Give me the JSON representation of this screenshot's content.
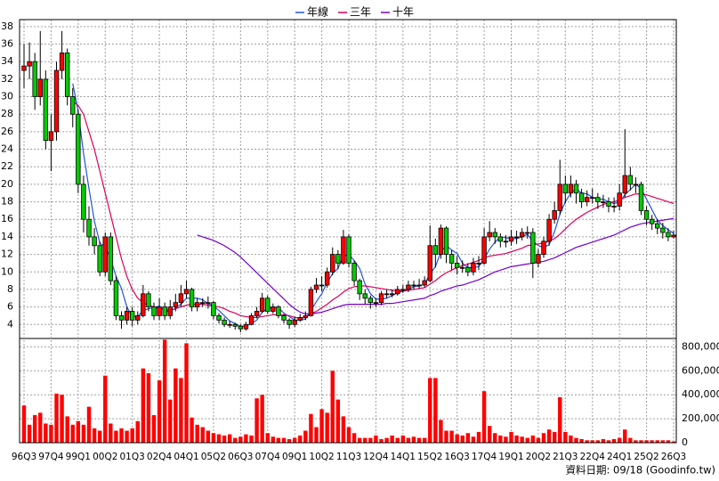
{
  "chart_data": {
    "type": "candlestick",
    "legend": "top",
    "grid": true,
    "up_color": "#ff0000",
    "down_color": "#00cc00",
    "footer": "資料日期: 09/18 (Goodinfo.tw)",
    "categories": [
      "96Q3",
      null,
      null,
      null,
      null,
      "97Q4",
      null,
      null,
      null,
      null,
      "99Q1",
      null,
      null,
      null,
      null,
      "00Q2",
      null,
      null,
      null,
      null,
      "01Q3",
      null,
      null,
      null,
      null,
      "02Q4",
      null,
      null,
      null,
      null,
      "04Q1",
      null,
      null,
      null,
      null,
      "05Q2",
      null,
      null,
      null,
      null,
      "06Q3",
      null,
      null,
      null,
      null,
      "07Q4",
      null,
      null,
      null,
      null,
      "09Q1",
      null,
      null,
      null,
      null,
      "10Q2",
      null,
      null,
      null,
      null,
      "11Q3",
      null,
      null,
      null,
      null,
      "12Q4",
      null,
      null,
      null,
      null,
      "14Q1",
      null,
      null,
      null,
      null,
      "15Q2",
      null,
      null,
      null,
      null,
      "16Q3",
      null,
      null,
      null,
      null,
      "17Q4",
      null,
      null,
      null,
      null,
      "19Q1",
      null,
      null,
      null,
      null,
      "20Q2",
      null,
      null,
      null,
      null,
      "21Q3",
      null,
      null,
      null,
      null,
      "22Q4",
      null,
      null,
      null,
      null,
      "24Q1",
      null,
      null,
      null,
      null,
      "25Q2",
      null,
      null,
      null,
      null,
      "26Q3"
    ],
    "open": [
      33,
      33.5,
      34,
      30,
      32,
      25,
      26,
      33,
      35,
      30,
      28,
      20,
      16,
      14,
      13,
      10,
      14,
      9,
      5,
      4.5,
      5.5,
      4.5,
      5,
      7.5,
      6,
      5,
      6,
      5,
      6,
      6.5,
      7.5,
      8,
      6,
      6.5,
      6.5,
      6.5,
      5,
      4.5,
      4,
      4,
      3.8,
      3.5,
      4,
      5,
      5.5,
      7,
      5.5,
      6,
      5,
      4.5,
      4,
      4.5,
      4.8,
      5,
      8,
      8.5,
      8.5,
      10,
      12,
      11,
      14,
      11,
      9,
      7.5,
      7,
      6.5,
      6.5,
      7.5,
      7.5,
      7.5,
      8,
      8,
      8.5,
      8.5,
      8.5,
      9,
      13,
      12,
      15,
      12,
      11,
      10.5,
      10.5,
      10,
      11,
      11,
      14,
      14.5,
      14,
      13.5,
      13.5,
      14,
      14,
      14.5,
      14.5,
      11,
      12,
      13.5,
      16,
      17,
      20,
      19,
      20,
      19,
      18,
      18.5,
      18.5,
      18,
      18,
      17.5,
      17.5,
      19,
      21,
      20,
      20,
      17,
      16,
      15.5,
      15,
      14.5,
      14
    ],
    "high": [
      36,
      36.2,
      35,
      37.5,
      33,
      28,
      34,
      37.5,
      35.5,
      31,
      28.5,
      21,
      17.5,
      15,
      13.5,
      14.5,
      14.5,
      9.5,
      5.5,
      6,
      6,
      5.5,
      8.5,
      7.8,
      6.5,
      7,
      6.5,
      6.8,
      7.5,
      8.5,
      9,
      8.2,
      7,
      7,
      7.2,
      6.7,
      5.3,
      4.8,
      4.4,
      4.2,
      4,
      4.3,
      5.3,
      6,
      7.6,
      7.3,
      6.4,
      6.2,
      5.2,
      4.7,
      4.9,
      5.2,
      5.5,
      8.3,
      9.3,
      9.5,
      10.5,
      12.8,
      12.5,
      14.8,
      14.3,
      11.3,
      9.2,
      8,
      7.3,
      7,
      7.8,
      8,
      8,
      8.4,
      8.5,
      9,
      9,
      9.2,
      9.5,
      15.3,
      13.8,
      15.4,
      15.2,
      12.5,
      11.8,
      11.3,
      11,
      11.6,
      11.8,
      15,
      15.8,
      15,
      14.4,
      14.2,
      14.8,
      14.7,
      15,
      15.2,
      15,
      12.6,
      14,
      16.6,
      18,
      22.8,
      21,
      21,
      20.5,
      19.5,
      19.3,
      19.5,
      19,
      18.8,
      18.5,
      18.5,
      20,
      26.3,
      22,
      20.8,
      20.3,
      17.5,
      16.5,
      16,
      15.6,
      15,
      14.7
    ],
    "low": [
      31,
      32,
      28.5,
      29,
      24,
      21.5,
      25,
      32,
      29,
      26.5,
      19,
      14.5,
      13,
      12,
      9.5,
      9.5,
      8.5,
      4.5,
      3.5,
      4,
      3.8,
      4,
      4.8,
      5.5,
      4.5,
      4.5,
      4.5,
      4.6,
      5.5,
      6,
      7,
      5.5,
      5.5,
      6,
      5.8,
      4.6,
      4.1,
      3.7,
      3.6,
      3.4,
      3.1,
      3.3,
      3.9,
      4.7,
      5.3,
      5.2,
      5.2,
      4.7,
      4.1,
      3.5,
      3.7,
      4.3,
      4.5,
      4.9,
      7.6,
      7.8,
      8.2,
      9.6,
      10.3,
      10.8,
      10.5,
      8.4,
      6.8,
      6.3,
      5.8,
      6,
      6.2,
      7,
      7.1,
      7.3,
      7.6,
      7.7,
      8,
      8.1,
      8.2,
      8.8,
      10.5,
      11.5,
      11,
      10.2,
      9.7,
      9.9,
      9.5,
      9.6,
      10.2,
      10.8,
      13.5,
      13.2,
      12.8,
      12.8,
      13,
      13.2,
      13.6,
      13.8,
      9.3,
      10.5,
      11.6,
      13,
      15.5,
      16.5,
      17.8,
      18.5,
      17.8,
      17.3,
      17.5,
      17.8,
      17.2,
      17.3,
      16.8,
      16.8,
      17,
      18.5,
      19.3,
      19,
      16.5,
      15.3,
      14.8,
      14.3,
      13.8,
      13.5,
      13.8
    ],
    "close": [
      33.5,
      34,
      30,
      32,
      25,
      26,
      33,
      35,
      30,
      28,
      20,
      16,
      14,
      13,
      10,
      14,
      9,
      5,
      4.5,
      5.5,
      4.5,
      5,
      7.5,
      6,
      5,
      6,
      5,
      6,
      6.5,
      7.5,
      8,
      6,
      6.5,
      6.5,
      6.5,
      5,
      4.5,
      4,
      4,
      3.8,
      3.5,
      4,
      5,
      5.5,
      7,
      5.5,
      6,
      5,
      4.5,
      4,
      4.5,
      4.8,
      5,
      8,
      8.5,
      8.5,
      10,
      12,
      11,
      14,
      11,
      9,
      7.5,
      7,
      6.5,
      6.5,
      7.5,
      7.5,
      7.5,
      8,
      8,
      8.5,
      8.5,
      8.5,
      9,
      13,
      12,
      15,
      12,
      11,
      10.5,
      10.5,
      10,
      11,
      11,
      14,
      14.5,
      14,
      13.5,
      13.5,
      14,
      14,
      14.5,
      14.5,
      11,
      12,
      13.5,
      16,
      17,
      20,
      19,
      20,
      19,
      18,
      18.5,
      18.5,
      18,
      18,
      17.5,
      17.5,
      19,
      21,
      20,
      20,
      17,
      16,
      15.5,
      15,
      14.5,
      14,
      14.2
    ],
    "volume": {
      "color": "#ff0000",
      "axis": "y2",
      "values": [
        310000,
        150000,
        230000,
        250000,
        160000,
        150000,
        410000,
        400000,
        220000,
        150000,
        180000,
        150000,
        300000,
        120000,
        100000,
        560000,
        160000,
        100000,
        120000,
        100000,
        120000,
        180000,
        620000,
        580000,
        230000,
        520000,
        860000,
        360000,
        620000,
        540000,
        830000,
        210000,
        150000,
        130000,
        100000,
        80000,
        70000,
        60000,
        70000,
        40000,
        50000,
        70000,
        60000,
        370000,
        400000,
        80000,
        50000,
        40000,
        40000,
        30000,
        40000,
        60000,
        100000,
        240000,
        130000,
        280000,
        250000,
        600000,
        360000,
        220000,
        130000,
        80000,
        40000,
        40000,
        40000,
        60000,
        30000,
        40000,
        60000,
        40000,
        60000,
        40000,
        50000,
        40000,
        40000,
        540000,
        540000,
        190000,
        100000,
        100000,
        70000,
        60000,
        80000,
        50000,
        90000,
        430000,
        140000,
        80000,
        60000,
        50000,
        90000,
        60000,
        50000,
        40000,
        60000,
        40000,
        80000,
        110000,
        90000,
        380000,
        90000,
        60000,
        40000,
        30000,
        20000,
        20000,
        20000,
        30000,
        20000,
        30000,
        40000,
        110000,
        40000,
        20000,
        20000,
        20000,
        20000,
        20000,
        20000,
        20000,
        10000
      ]
    },
    "series": [
      {
        "name": "年線",
        "color": "#2255dd",
        "values": [
          null,
          null,
          null,
          null,
          null,
          null,
          null,
          null,
          null,
          31.5,
          28.3,
          23.5,
          19.5,
          15.8,
          13.3,
          12.8,
          11.5,
          9.5,
          8.1,
          6,
          4.9,
          4.9,
          5.6,
          5.8,
          5.9,
          6.1,
          5.5,
          5.5,
          5.9,
          6.3,
          7,
          7,
          7,
          6.8,
          6.4,
          6.1,
          5.6,
          5,
          4.4,
          4.1,
          3.8,
          3.8,
          4.1,
          4.5,
          5.4,
          5.8,
          6,
          5.9,
          5.3,
          4.9,
          4.5,
          4.5,
          4.6,
          5.6,
          6.6,
          7.5,
          8.8,
          9.8,
          10.4,
          11.8,
          12,
          11.3,
          10.4,
          8.6,
          7.5,
          6.9,
          6.9,
          7,
          7.3,
          7.6,
          7.8,
          8,
          8.3,
          8.4,
          8.6,
          9.8,
          10.6,
          12.3,
          13,
          12.5,
          12.1,
          11,
          10.5,
          10.5,
          10.6,
          11.5,
          12.6,
          13.4,
          14,
          13.9,
          13.8,
          13.8,
          14,
          14.3,
          13.5,
          13,
          12.8,
          13.1,
          14.6,
          16.6,
          18,
          19,
          19.5,
          19,
          18.9,
          18.5,
          18.3,
          18.3,
          18,
          17.8,
          18,
          18.8,
          19.4,
          20,
          19.5,
          18.3,
          17.1,
          15.9,
          15.3,
          14.8,
          14.4
        ]
      },
      {
        "name": "三年",
        "color": "#dd0055",
        "values": [
          null,
          null,
          null,
          null,
          null,
          null,
          null,
          null,
          null,
          29.5,
          29,
          28,
          26,
          24,
          21.5,
          19,
          16.5,
          14,
          11.5,
          9.5,
          8,
          7,
          6.5,
          6.2,
          6,
          5.8,
          5.7,
          5.6,
          5.8,
          6,
          6.2,
          6.3,
          6.3,
          6.3,
          6.2,
          6.1,
          6,
          5.8,
          5.5,
          5.3,
          5,
          4.9,
          4.8,
          4.8,
          4.9,
          5,
          5.1,
          5.1,
          5.1,
          5,
          4.8,
          4.7,
          4.8,
          5.2,
          5.5,
          5.9,
          6.3,
          6.8,
          7.2,
          7.7,
          8.1,
          8.3,
          8.4,
          8.4,
          8.3,
          8.2,
          8.1,
          8,
          7.9,
          7.8,
          7.8,
          7.9,
          8,
          8.1,
          8.2,
          8.6,
          9,
          9.5,
          9.9,
          10.2,
          10.5,
          10.7,
          10.9,
          11.1,
          11.3,
          11.6,
          11.8,
          11.9,
          12,
          12.1,
          12.3,
          12.5,
          12.7,
          13,
          13.1,
          13.2,
          13.3,
          13.5,
          13.8,
          14.3,
          14.9,
          15.5,
          16,
          16.4,
          16.8,
          17.1,
          17.4,
          17.7,
          17.9,
          18,
          18.2,
          18.5,
          18.7,
          18.9,
          18.9,
          18.8,
          18.6,
          18.4,
          18.2,
          18,
          17.8
        ]
      },
      {
        "name": "十年",
        "color": "#7700cc",
        "values": [
          null,
          null,
          null,
          null,
          null,
          null,
          null,
          null,
          null,
          null,
          null,
          null,
          null,
          null,
          null,
          null,
          null,
          null,
          null,
          null,
          null,
          null,
          null,
          null,
          null,
          null,
          null,
          null,
          null,
          null,
          null,
          null,
          14.2,
          14,
          13.8,
          13.6,
          13.3,
          13,
          12.6,
          12.2,
          11.7,
          11.1,
          10.5,
          9.9,
          9.3,
          8.7,
          8.1,
          7.5,
          6.9,
          6.3,
          5.8,
          5.4,
          5.2,
          5.2,
          5.3,
          5.4,
          5.6,
          5.8,
          6,
          6.2,
          6.3,
          6.3,
          6.3,
          6.3,
          6.3,
          6.3,
          6.3,
          6.4,
          6.4,
          6.5,
          6.6,
          6.7,
          6.8,
          6.9,
          7,
          7.3,
          7.5,
          7.8,
          8,
          8.2,
          8.4,
          8.5,
          8.7,
          8.9,
          9.1,
          9.4,
          9.7,
          10,
          10.2,
          10.4,
          10.6,
          10.7,
          10.8,
          10.9,
          11,
          11.1,
          11.2,
          11.4,
          11.6,
          11.9,
          12.2,
          12.5,
          12.8,
          13,
          13.2,
          13.4,
          13.6,
          13.8,
          14,
          14.2,
          14.5,
          14.8,
          15.1,
          15.3,
          15.5,
          15.6,
          15.7,
          15.8,
          15.9,
          16,
          16.1
        ]
      }
    ],
    "ylim": [
      2.4,
      38.8
    ],
    "yticks": [
      4,
      6,
      8,
      10,
      12,
      14,
      16,
      18,
      20,
      22,
      24,
      26,
      28,
      30,
      32,
      34,
      36,
      38
    ],
    "y2lim": [
      0,
      870000
    ],
    "y2ticks": [
      0,
      {
        "value": 200000,
        "label": "200,000"
      },
      {
        "value": 400000,
        "label": "400,000"
      },
      {
        "value": 600000,
        "label": "600,000"
      },
      {
        "value": 800000,
        "label": "800,000"
      }
    ]
  }
}
